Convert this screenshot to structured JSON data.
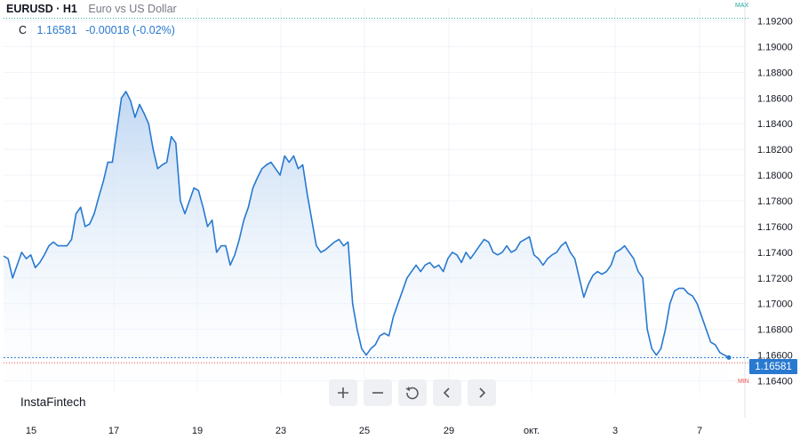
{
  "header": {
    "symbol": "EURUSD · H1",
    "description": "Euro vs US Dollar",
    "close_label": "C",
    "close_value": "1.16581",
    "change_value": "-0.00018 (-0.02%)"
  },
  "brand": "InstaFintech",
  "markers": {
    "max_label": "MAX",
    "min_label": "MIN",
    "last_price_tag": "1.16581"
  },
  "toolbar": [
    {
      "name": "zoom-in-button",
      "icon": "plus-icon"
    },
    {
      "name": "zoom-out-button",
      "icon": "minus-icon"
    },
    {
      "name": "reset-button",
      "icon": "reset-icon"
    },
    {
      "name": "scroll-left-button",
      "icon": "chevron-left-icon"
    },
    {
      "name": "scroll-right-button",
      "icon": "chevron-right-icon"
    }
  ],
  "colors": {
    "line": "#2879d0",
    "fill": "#c9dcf3",
    "max": "#26a69a",
    "min": "#ef5350",
    "grid": "#f0f3fa"
  },
  "chart_data": {
    "type": "area",
    "title": "EURUSD · H1",
    "ylim": [
      1.163,
      1.193
    ],
    "y_ticks": [
      "1.19200",
      "1.19000",
      "1.18800",
      "1.18600",
      "1.18400",
      "1.18200",
      "1.18000",
      "1.17800",
      "1.17600",
      "1.17400",
      "1.17200",
      "1.17000",
      "1.16800",
      "1.16600",
      "1.16400"
    ],
    "x_ticks": [
      "15",
      "17",
      "19",
      "23",
      "25",
      "29",
      "окт.",
      "3",
      "7"
    ],
    "max_level": 1.1922,
    "min_level": 1.1654,
    "last_value": 1.16581,
    "x": [
      0,
      1,
      2,
      3,
      4,
      5,
      6,
      7,
      8,
      9,
      10,
      11,
      12,
      13,
      14,
      15,
      16,
      17,
      18,
      19,
      20,
      21,
      22,
      23,
      24,
      25,
      26,
      27,
      28,
      29,
      30,
      31,
      32,
      33,
      34,
      35,
      36,
      37,
      38,
      39,
      40,
      41,
      42,
      43,
      44,
      45,
      46,
      47,
      48,
      49,
      50,
      51,
      52,
      53,
      54,
      55,
      56,
      57,
      58,
      59,
      60,
      61,
      62,
      63,
      64,
      65,
      66,
      67,
      68,
      69,
      70,
      71,
      72,
      73,
      74,
      75,
      76,
      77,
      78,
      79,
      80,
      81,
      82,
      83,
      84,
      85,
      86,
      87,
      88,
      89,
      90,
      91,
      92,
      93,
      94,
      95,
      96,
      97,
      98,
      99,
      100,
      101,
      102,
      103,
      104,
      105,
      106,
      107,
      108,
      109,
      110,
      111,
      112,
      113,
      114,
      115,
      116,
      117,
      118,
      119,
      120,
      121,
      122,
      123,
      124,
      125,
      126,
      127,
      128,
      129,
      130,
      131,
      132,
      133,
      134,
      135,
      136,
      137,
      138,
      139,
      140,
      141,
      142,
      143,
      144,
      145,
      146,
      147,
      148,
      149,
      150,
      151,
      152,
      153,
      154,
      155,
      156,
      157,
      158,
      159,
      160,
      161,
      162,
      163,
      164,
      165,
      166,
      167,
      168,
      169,
      170,
      171,
      172,
      173,
      174,
      175,
      176,
      177,
      178,
      179,
      180,
      181,
      182,
      183,
      184,
      185,
      186,
      187,
      188,
      189,
      190,
      191,
      192,
      193,
      194,
      195,
      196,
      197,
      198,
      199,
      200,
      201,
      202,
      203
    ],
    "values": [
      1.1737,
      1.1735,
      1.172,
      1.173,
      1.174,
      1.1735,
      1.1738,
      1.1728,
      1.1732,
      1.1738,
      1.1745,
      1.1748,
      1.1745,
      1.1745,
      1.1745,
      1.175,
      1.177,
      1.1775,
      1.176,
      1.1762,
      1.177,
      1.1783,
      1.1795,
      1.181,
      1.181,
      1.1835,
      1.186,
      1.1865,
      1.1858,
      1.1845,
      1.1855,
      1.1848,
      1.184,
      1.182,
      1.1805,
      1.1808,
      1.181,
      1.183,
      1.1825,
      1.178,
      1.177,
      1.178,
      1.179,
      1.1788,
      1.1775,
      1.176,
      1.1765,
      1.174,
      1.1745,
      1.1745,
      1.173,
      1.1738,
      1.175,
      1.1765,
      1.1775,
      1.179,
      1.1798,
      1.1805,
      1.1808,
      1.181,
      1.1805,
      1.18,
      1.1815,
      1.181,
      1.1815,
      1.1805,
      1.1808,
      1.1785,
      1.1765,
      1.1745,
      1.174,
      1.1742,
      1.1745,
      1.1748,
      1.175,
      1.1745,
      1.1748,
      1.17,
      1.168,
      1.1665,
      1.166,
      1.1665,
      1.1668,
      1.1675,
      1.1677,
      1.1675,
      1.169,
      1.17,
      1.171,
      1.172,
      1.1725,
      1.173,
      1.1725,
      1.173,
      1.1732,
      1.1728,
      1.173,
      1.1725,
      1.1735,
      1.174,
      1.1738,
      1.1732,
      1.174,
      1.1735,
      1.174,
      1.1745,
      1.175,
      1.1748,
      1.174,
      1.1738,
      1.174,
      1.1745,
      1.174,
      1.1742,
      1.1748,
      1.175,
      1.1752,
      1.1738,
      1.1735,
      1.173,
      1.1735,
      1.1738,
      1.174,
      1.1745,
      1.1748,
      1.174,
      1.1735,
      1.172,
      1.1705,
      1.1715,
      1.1722,
      1.1725,
      1.1723,
      1.1725,
      1.173,
      1.174,
      1.1742,
      1.1745,
      1.174,
      1.1735,
      1.1725,
      1.172,
      1.168,
      1.1665,
      1.166,
      1.1665,
      1.168,
      1.17,
      1.171,
      1.1712,
      1.1712,
      1.1708,
      1.1706,
      1.17,
      1.169,
      1.168,
      1.167,
      1.1668,
      1.1662,
      1.166,
      1.16581,
      1.16581,
      1.16581,
      1.16581,
      1.16581,
      1.16581,
      1.16581,
      1.16581,
      1.16581,
      1.16581,
      1.16581,
      1.16581,
      1.16581,
      1.16581,
      1.16581,
      1.16581,
      1.16581,
      1.16581,
      1.16581,
      1.16581,
      1.16581,
      1.16581,
      1.16581,
      1.16581,
      1.16581,
      1.16581,
      1.16581,
      1.16581,
      1.16581,
      1.16581,
      1.16581,
      1.16581,
      1.16581,
      1.16581,
      1.16581,
      1.16581,
      1.16581,
      1.16581,
      1.16581,
      1.16581,
      1.16581,
      1.16581,
      1.16581,
      1.16581
    ]
  }
}
